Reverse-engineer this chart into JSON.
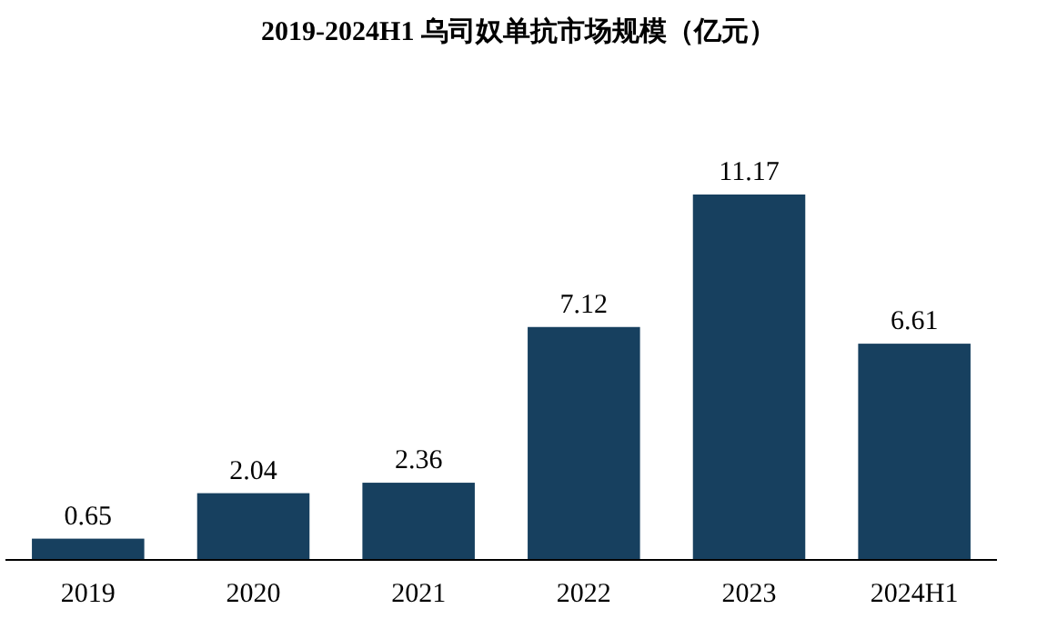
{
  "chart_data": {
    "type": "bar",
    "title": "2019-2024H1 乌司奴单抗市场规模（亿元）",
    "categories": [
      "2019",
      "2020",
      "2021",
      "2022",
      "2023",
      "2024H1"
    ],
    "values": [
      0.65,
      2.04,
      2.36,
      7.12,
      11.17,
      6.61
    ],
    "color": "#17405f",
    "data_labels": true
  }
}
